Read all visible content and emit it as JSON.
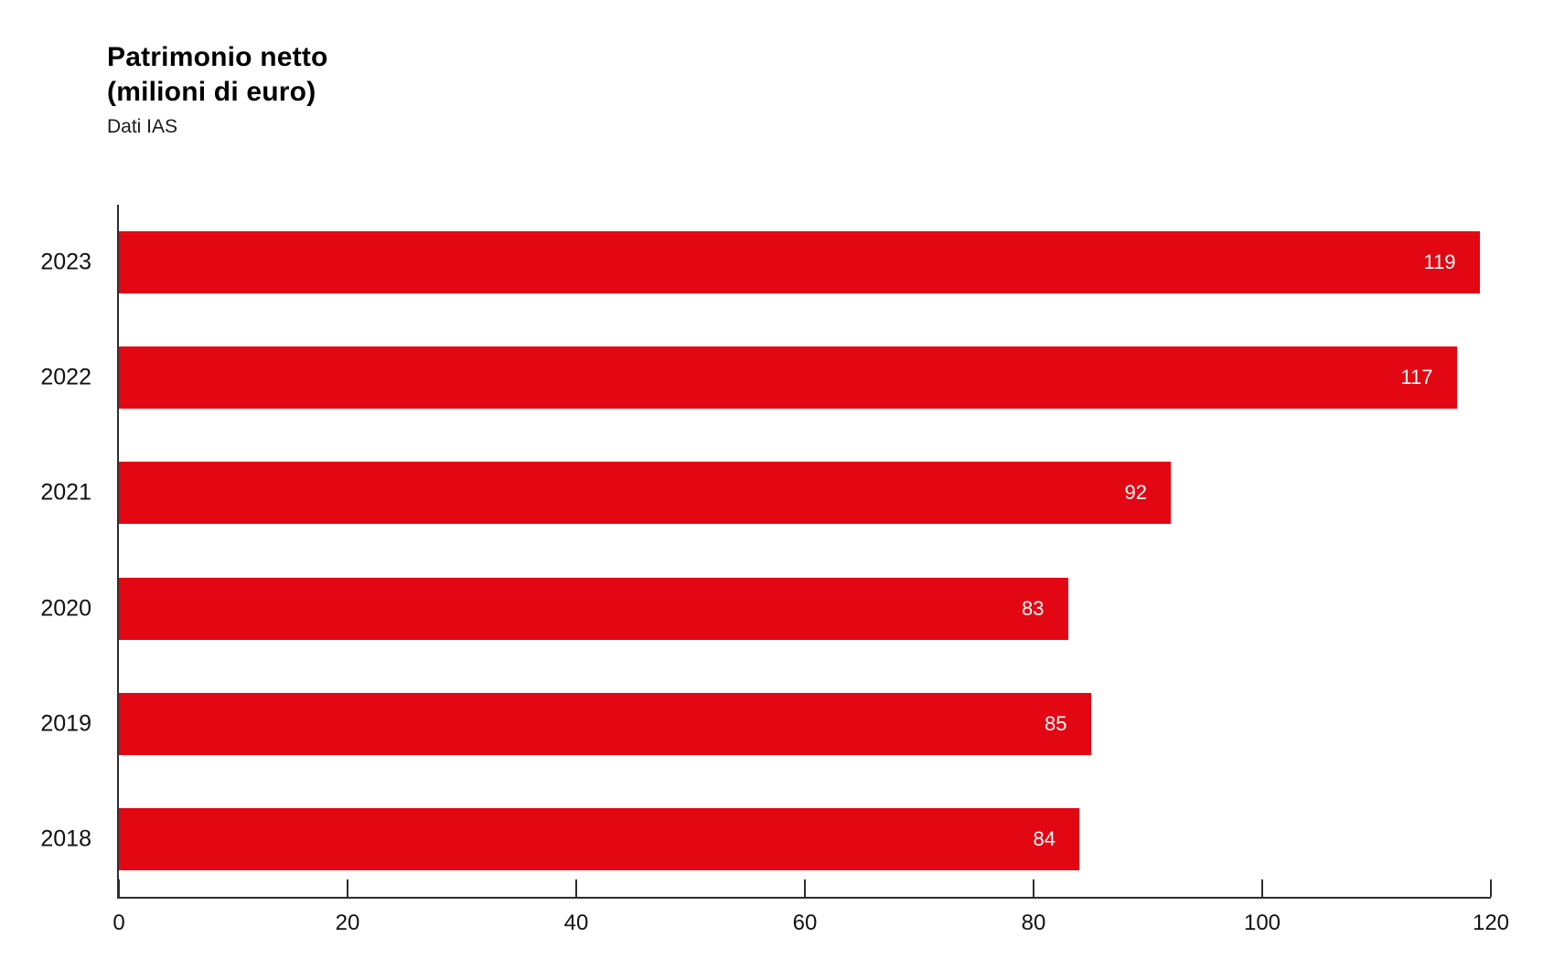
{
  "header": {
    "title_line1": "Patrimonio netto",
    "title_line2": "(milioni di euro)",
    "subtitle": "Dati IAS"
  },
  "chart_data": {
    "type": "bar",
    "orientation": "horizontal",
    "title": "Patrimonio netto (milioni di euro)",
    "subtitle": "Dati IAS",
    "categories": [
      "2023",
      "2022",
      "2021",
      "2020",
      "2019",
      "2018"
    ],
    "values": [
      119,
      117,
      92,
      83,
      85,
      84
    ],
    "xlabel": "",
    "ylabel": "",
    "xlim": [
      0,
      120
    ],
    "xticks": [
      0,
      20,
      40,
      60,
      80,
      100,
      120
    ],
    "grid": false,
    "legend": false,
    "colors": {
      "bar": "#e30613",
      "value_label": "#ffffff",
      "axis": "#2e2e2e",
      "text": "#111111",
      "background": "#ffffff"
    }
  }
}
